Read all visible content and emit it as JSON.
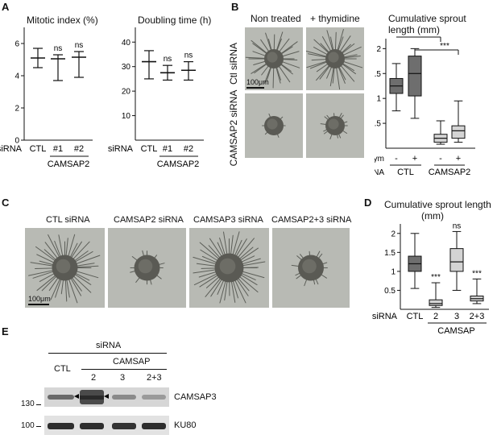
{
  "panels": {
    "A": {
      "letter": "A",
      "chart_data": [
        {
          "type": "scatter",
          "title": "Mitotic index (%)",
          "categories": [
            "CTL",
            "#1",
            "#2"
          ],
          "means": [
            5.1,
            5.05,
            5.15
          ],
          "error_low": [
            4.5,
            3.7,
            3.9
          ],
          "error_high": [
            5.7,
            5.3,
            5.5
          ],
          "significance": [
            "",
            "ns",
            "ns"
          ],
          "yticks": [
            0,
            2,
            4,
            6
          ],
          "ylim": [
            0,
            7
          ]
        },
        {
          "type": "scatter",
          "title": "Doubling time (h)",
          "categories": [
            "CTL",
            "#1",
            "#2"
          ],
          "means": [
            32,
            27.5,
            28.5
          ],
          "error_low": [
            25,
            24.5,
            24.5
          ],
          "error_high": [
            36.5,
            30.5,
            32
          ],
          "significance": [
            "",
            "ns",
            "ns"
          ],
          "yticks": [
            10,
            20,
            30,
            40
          ],
          "ylim": [
            0,
            46
          ]
        }
      ],
      "xaxis": {
        "prefix": "siRNA",
        "group_label": "CAMSAP2"
      }
    },
    "B": {
      "letter": "B",
      "col_headers": [
        "Non treated",
        "+ thymidine"
      ],
      "row_labels": [
        "Ctl siRNA",
        "CAMSAP2 siRNA"
      ],
      "scalebar": "100μm",
      "chart_data": {
        "type": "box",
        "title_lines": [
          "Cumulative sprout",
          "length (mm)"
        ],
        "categories": [
          "CTL -",
          "CTL +",
          "CAMSAP2 -",
          "CAMSAP2 +"
        ],
        "boxes": [
          {
            "min": 0.75,
            "q1": 1.1,
            "median": 1.25,
            "q3": 1.4,
            "max": 1.7,
            "color": "#6e6e6e"
          },
          {
            "min": 0.6,
            "q1": 1.05,
            "median": 1.5,
            "q3": 1.85,
            "max": 2.0,
            "color": "#6e6e6e"
          },
          {
            "min": 0.08,
            "q1": 0.12,
            "median": 0.2,
            "q3": 0.28,
            "max": 0.55,
            "color": "#d4d4d4"
          },
          {
            "min": 0.12,
            "q1": 0.2,
            "median": 0.35,
            "q3": 0.45,
            "max": 0.95,
            "color": "#d4d4d4"
          }
        ],
        "yticks": [
          0.5,
          1,
          1.5,
          2
        ],
        "ylim": [
          0,
          2.2
        ],
        "significance": [
          "***",
          "***"
        ],
        "row_thym": {
          "label": "Thym",
          "values": [
            "-",
            "+",
            "-",
            "+"
          ]
        },
        "row_sirna": {
          "label": "siRNA",
          "groups": [
            "CTL",
            "CAMSAP2"
          ]
        }
      }
    },
    "C": {
      "letter": "C",
      "col_headers": [
        "CTL siRNA",
        "CAMSAP2 siRNA",
        "CAMSAP3 siRNA",
        "CAMSAP2+3 siRNA"
      ],
      "scalebar": "100μm"
    },
    "D": {
      "letter": "D",
      "chart_data": {
        "type": "box",
        "title_lines": [
          "Cumulative sprout length",
          "(mm)"
        ],
        "categories": [
          "CTL",
          "2",
          "3",
          "2+3"
        ],
        "boxes": [
          {
            "min": 0.55,
            "q1": 1.0,
            "median": 1.2,
            "q3": 1.4,
            "max": 2.0,
            "color": "#6e6e6e"
          },
          {
            "min": 0.05,
            "q1": 0.1,
            "median": 0.15,
            "q3": 0.25,
            "max": 0.7,
            "color": "#d4d4d4"
          },
          {
            "min": 0.5,
            "q1": 1.0,
            "median": 1.25,
            "q3": 1.6,
            "max": 2.05,
            "color": "#d4d4d4"
          },
          {
            "min": 0.15,
            "q1": 0.22,
            "median": 0.28,
            "q3": 0.35,
            "max": 0.8,
            "color": "#d4d4d4"
          }
        ],
        "significance": [
          "",
          "***",
          "ns",
          "***"
        ],
        "yticks": [
          0.5,
          1,
          1.5,
          2
        ],
        "ylim": [
          0,
          2.25
        ],
        "xaxis": {
          "prefix": "siRNA",
          "group_label": "CAMSAP"
        }
      }
    },
    "E": {
      "letter": "E",
      "header": "siRNA",
      "subheader": "CAMSAP",
      "lanes": [
        "CTL",
        "2",
        "3",
        "2+3"
      ],
      "markers": [
        "130",
        "100"
      ],
      "bands": [
        "CAMSAP3",
        "KU80"
      ]
    }
  }
}
